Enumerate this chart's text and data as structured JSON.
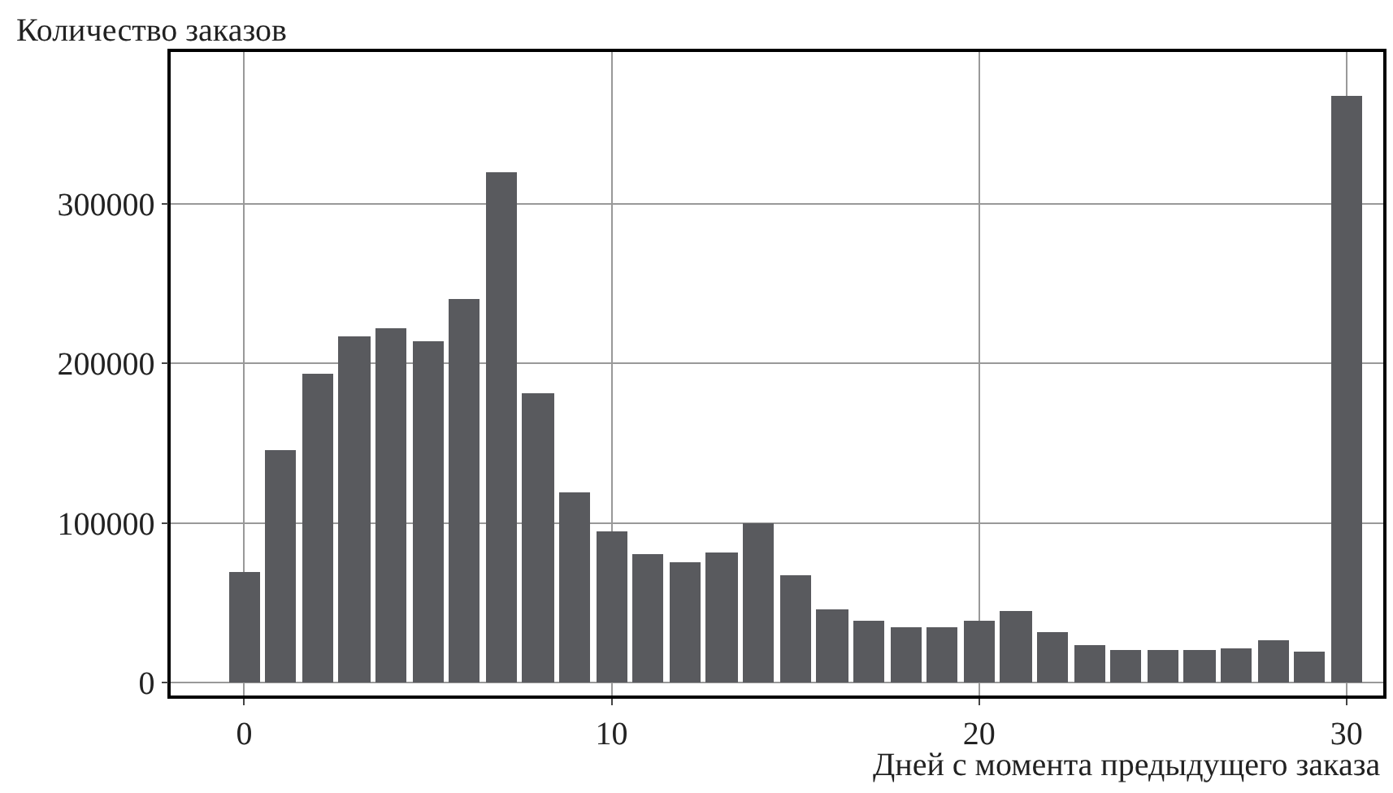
{
  "chart_data": {
    "type": "histogram",
    "xlabel": "Дней с момента предыдущего заказа",
    "ylabel": "Количество заказов",
    "bins": [
      -0.5,
      0.5,
      1.5,
      2.5,
      3.5,
      4.5,
      5.5,
      6.5,
      7.5,
      8.5,
      9.5,
      10.5,
      11.5,
      12.5,
      13.5,
      14.5,
      15.5,
      16.5,
      17.5,
      18.5,
      19.5,
      20.5,
      21.5,
      22.5,
      23.5,
      24.5,
      25.5,
      26.5,
      27.5,
      28.5,
      29.5,
      30.5
    ],
    "values": [
      69000,
      146000,
      193000,
      217000,
      222000,
      214000,
      240000,
      320000,
      181000,
      119000,
      95000,
      81000,
      75000,
      82000,
      100000,
      67000,
      46000,
      39000,
      35000,
      35000,
      39000,
      45000,
      32000,
      24000,
      20000,
      20000,
      20000,
      22000,
      27000,
      19000,
      368000
    ],
    "color": "#595a5e",
    "xlim": [
      -2,
      31
    ],
    "xticks": [
      0,
      10,
      20,
      30
    ],
    "ylim": [
      -8000,
      395000
    ],
    "yticks": [
      0,
      100000,
      200000,
      300000
    ],
    "grid": true
  }
}
